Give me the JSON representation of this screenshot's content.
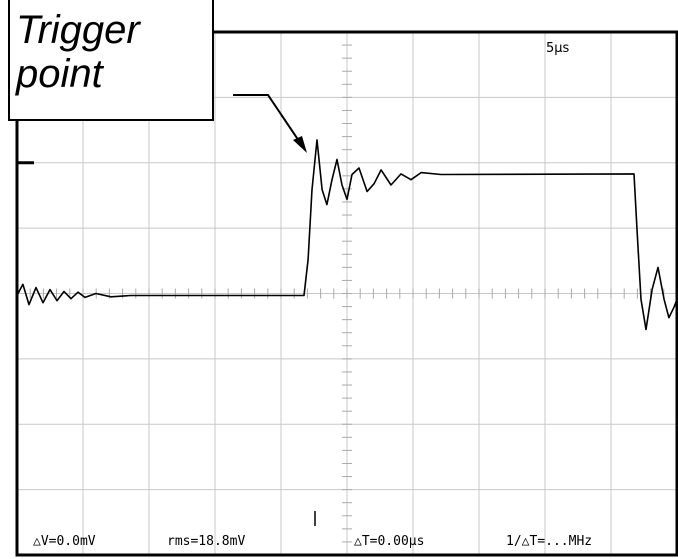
{
  "callout": {
    "line1": "Trigger",
    "line2": "point"
  },
  "timebase_label": "5µs",
  "readouts": {
    "delta_v": "△V=0.0mV",
    "rms": "rms=18.8mV",
    "delta_t": "△T=0.00µs",
    "inv_delta_t": "1/△T=...MHz"
  },
  "chart_data": {
    "type": "line",
    "title": "",
    "xlabel": "",
    "ylabel": "",
    "time_per_div": "5µs",
    "xlim_us": [
      0,
      50
    ],
    "ylim_div": [
      -4,
      4
    ],
    "grid": true,
    "trigger_level_div": 2.0,
    "trace_color": "#000000",
    "grid_color": "#c8c8c8",
    "series": [
      {
        "x_us": [
          0,
          0.45,
          0.91,
          1.44,
          1.97,
          2.5,
          3.03,
          3.56,
          4.09,
          4.62,
          5.15,
          5.98,
          7.12,
          8.64,
          21.74,
          22.05,
          22.35,
          22.73,
          23.11,
          23.48,
          23.86,
          24.24,
          24.62,
          25.0,
          25.38,
          25.91,
          26.52,
          27.05,
          27.58,
          28.33,
          29.09,
          29.85,
          30.61,
          32.12,
          46.74,
          46.97,
          47.27,
          47.65,
          48.11,
          48.56,
          49.02,
          49.39,
          49.77,
          50
        ],
        "y_div": [
          -0.03,
          0.14,
          -0.17,
          0.09,
          -0.14,
          0.06,
          -0.11,
          0.03,
          -0.08,
          0.02,
          -0.06,
          0,
          -0.05,
          -0.03,
          -0.03,
          0.52,
          1.59,
          2.35,
          1.59,
          1.36,
          1.74,
          2.05,
          1.66,
          1.44,
          1.82,
          1.92,
          1.56,
          1.68,
          1.89,
          1.66,
          1.83,
          1.74,
          1.85,
          1.82,
          1.83,
          0.98,
          -0.09,
          -0.55,
          0.06,
          0.4,
          -0.09,
          -0.37,
          -0.21,
          -0.09
        ]
      }
    ]
  }
}
